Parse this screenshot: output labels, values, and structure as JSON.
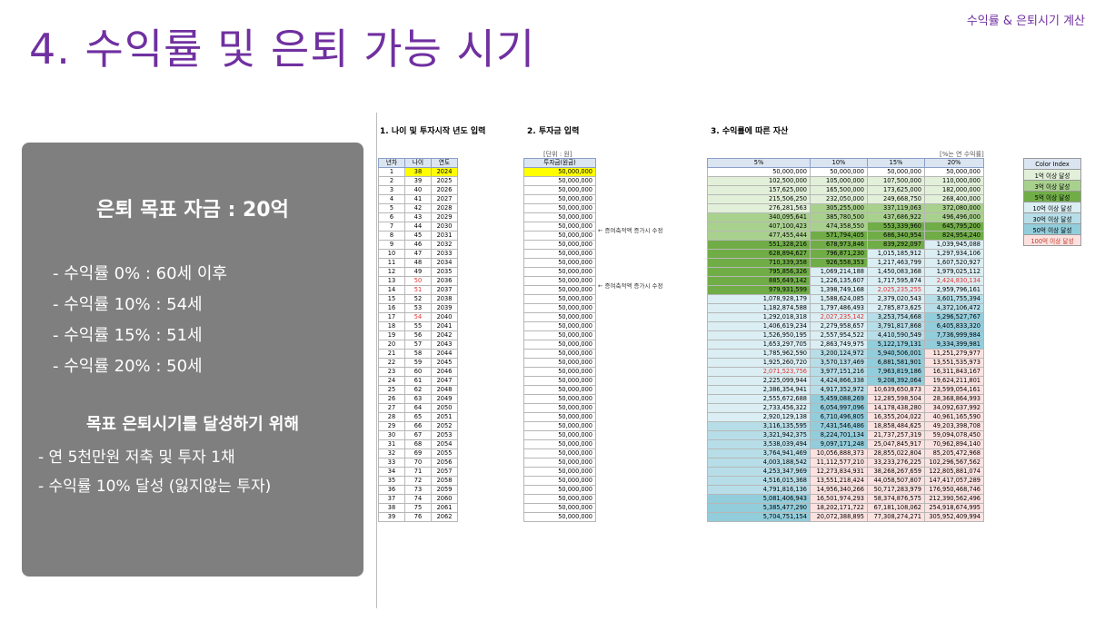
{
  "corner_label": "수익률 & 은퇴시기 계산",
  "title": "4. 수익률 및 은퇴 가능 시기",
  "summary": {
    "goal": "은퇴 목표 자금 : 20억",
    "rates": [
      "- 수익률    0% : 60세 이후",
      "- 수익률 10% : 54세",
      "- 수익률 15% : 51세",
      "- 수익률 20% : 50세"
    ],
    "subtitle": "목표 은퇴시기를 달성하기 위해",
    "actions": [
      "- 연 5천만원 저축 및 투자 1채",
      "- 수익률 10% 달성 (잃지않는 투자)"
    ]
  },
  "sheet": {
    "sec1": "1. 나이 및 투자시작 년도 입력",
    "sec2": "2. 투자금 입력",
    "sec3": "3. 수익률에 따른 자산",
    "unit": "[단위 : 원]",
    "rate_note": "[%는 연 수익률]",
    "headers1": [
      "년차",
      "나이",
      "연도"
    ],
    "header2": "투자금(원금)",
    "headers3": [
      "5%",
      "10%",
      "15%",
      "20%"
    ],
    "note_text": "← 증여축적액 증가시 수정",
    "legend_title": "Color Index",
    "legend": [
      {
        "label": "1억 이상 달성",
        "color": "#e2f0d9"
      },
      {
        "label": "3억 이상 달성",
        "color": "#a9d18e"
      },
      {
        "label": "5억 이상 달성",
        "color": "#70ad47"
      },
      {
        "label": "10억 이상 달성",
        "color": "#daeef3"
      },
      {
        "label": "30억 이상 달성",
        "color": "#b7dee8"
      },
      {
        "label": "50억 이상 달성",
        "color": "#92cddc"
      },
      {
        "label": "100억 이상 달성",
        "color": "#fbe2e0"
      }
    ],
    "investment": "50,000,000",
    "rows": [
      [
        "1",
        "38",
        "2024",
        "50,000,000",
        "50,000,000",
        "50,000,000",
        "50,000,000"
      ],
      [
        "2",
        "39",
        "2025",
        "102,500,000",
        "105,000,000",
        "107,500,000",
        "110,000,000"
      ],
      [
        "3",
        "40",
        "2026",
        "157,625,000",
        "165,500,000",
        "173,625,000",
        "182,000,000"
      ],
      [
        "4",
        "41",
        "2027",
        "215,506,250",
        "232,050,000",
        "249,668,750",
        "268,400,000"
      ],
      [
        "5",
        "42",
        "2028",
        "276,281,563",
        "305,255,000",
        "337,119,063",
        "372,080,000"
      ],
      [
        "6",
        "43",
        "2029",
        "340,095,641",
        "385,780,500",
        "437,686,922",
        "496,496,000"
      ],
      [
        "7",
        "44",
        "2030",
        "407,100,423",
        "474,358,550",
        "553,339,960",
        "645,795,200"
      ],
      [
        "8",
        "45",
        "2031",
        "477,455,444",
        "571,794,405",
        "686,340,954",
        "824,954,240"
      ],
      [
        "9",
        "46",
        "2032",
        "551,328,216",
        "678,973,846",
        "839,292,097",
        "1,039,945,088"
      ],
      [
        "10",
        "47",
        "2033",
        "628,894,627",
        "796,871,230",
        "1,015,185,912",
        "1,297,934,106"
      ],
      [
        "11",
        "48",
        "2034",
        "710,339,358",
        "926,558,353",
        "1,217,463,799",
        "1,607,520,927"
      ],
      [
        "12",
        "49",
        "2035",
        "795,856,326",
        "1,069,214,188",
        "1,450,083,368",
        "1,979,025,112"
      ],
      [
        "13",
        "50",
        "2036",
        "885,649,142",
        "1,226,135,607",
        "1,717,595,874",
        "2,424,830,134"
      ],
      [
        "14",
        "51",
        "2037",
        "979,931,599",
        "1,398,749,168",
        "2,025,235,255",
        "2,959,796,161"
      ],
      [
        "15",
        "52",
        "2038",
        "1,078,928,179",
        "1,588,624,085",
        "2,379,020,543",
        "3,601,755,394"
      ],
      [
        "16",
        "53",
        "2039",
        "1,182,874,588",
        "1,797,486,493",
        "2,785,873,625",
        "4,372,106,472"
      ],
      [
        "17",
        "54",
        "2040",
        "1,292,018,318",
        "2,027,235,142",
        "3,253,754,668",
        "5,296,527,767"
      ],
      [
        "18",
        "55",
        "2041",
        "1,406,619,234",
        "2,279,958,657",
        "3,791,817,868",
        "6,405,833,320"
      ],
      [
        "19",
        "56",
        "2042",
        "1,526,950,195",
        "2,557,954,522",
        "4,410,590,549",
        "7,736,999,984"
      ],
      [
        "20",
        "57",
        "2043",
        "1,653,297,705",
        "2,863,749,975",
        "5,122,179,131",
        "9,334,399,981"
      ],
      [
        "21",
        "58",
        "2044",
        "1,785,962,590",
        "3,200,124,972",
        "5,940,506,001",
        "11,251,279,977"
      ],
      [
        "22",
        "59",
        "2045",
        "1,925,260,720",
        "3,570,137,469",
        "6,881,581,901",
        "13,551,535,973"
      ],
      [
        "23",
        "60",
        "2046",
        "2,071,523,756",
        "3,977,151,216",
        "7,963,819,186",
        "16,311,843,167"
      ],
      [
        "24",
        "61",
        "2047",
        "2,225,099,944",
        "4,424,866,338",
        "9,208,392,064",
        "19,624,211,801"
      ],
      [
        "25",
        "62",
        "2048",
        "2,386,354,941",
        "4,917,352,972",
        "10,639,650,873",
        "23,599,054,161"
      ],
      [
        "26",
        "63",
        "2049",
        "2,555,672,688",
        "5,459,088,269",
        "12,285,598,504",
        "28,368,864,993"
      ],
      [
        "27",
        "64",
        "2050",
        "2,733,456,322",
        "6,054,997,096",
        "14,178,438,280",
        "34,092,637,992"
      ],
      [
        "28",
        "65",
        "2051",
        "2,920,129,138",
        "6,710,496,805",
        "16,355,204,022",
        "40,961,165,590"
      ],
      [
        "29",
        "66",
        "2052",
        "3,116,135,595",
        "7,431,546,486",
        "18,858,484,625",
        "49,203,398,708"
      ],
      [
        "30",
        "67",
        "2053",
        "3,321,942,375",
        "8,224,701,134",
        "21,737,257,319",
        "59,094,078,450"
      ],
      [
        "31",
        "68",
        "2054",
        "3,538,039,494",
        "9,097,171,248",
        "25,047,845,917",
        "70,962,894,140"
      ],
      [
        "32",
        "69",
        "2055",
        "3,764,941,469",
        "10,056,888,373",
        "28,855,022,804",
        "85,205,472,968"
      ],
      [
        "33",
        "70",
        "2056",
        "4,003,188,542",
        "11,112,577,210",
        "33,233,276,225",
        "102,296,567,562"
      ],
      [
        "34",
        "71",
        "2057",
        "4,253,347,969",
        "12,273,834,931",
        "38,268,267,659",
        "122,805,881,074"
      ],
      [
        "35",
        "72",
        "2058",
        "4,516,015,368",
        "13,551,218,424",
        "44,058,507,807",
        "147,417,057,289"
      ],
      [
        "36",
        "73",
        "2059",
        "4,791,816,136",
        "14,956,340,266",
        "50,717,283,979",
        "176,950,468,746"
      ],
      [
        "37",
        "74",
        "2060",
        "5,081,406,943",
        "16,501,974,293",
        "58,374,876,575",
        "212,390,562,496"
      ],
      [
        "38",
        "75",
        "2061",
        "5,385,477,290",
        "18,202,171,722",
        "67,181,108,062",
        "254,918,674,995"
      ],
      [
        "39",
        "76",
        "2062",
        "5,704,751,154",
        "20,072,388,895",
        "77,308,274,271",
        "305,952,409,994"
      ]
    ]
  }
}
